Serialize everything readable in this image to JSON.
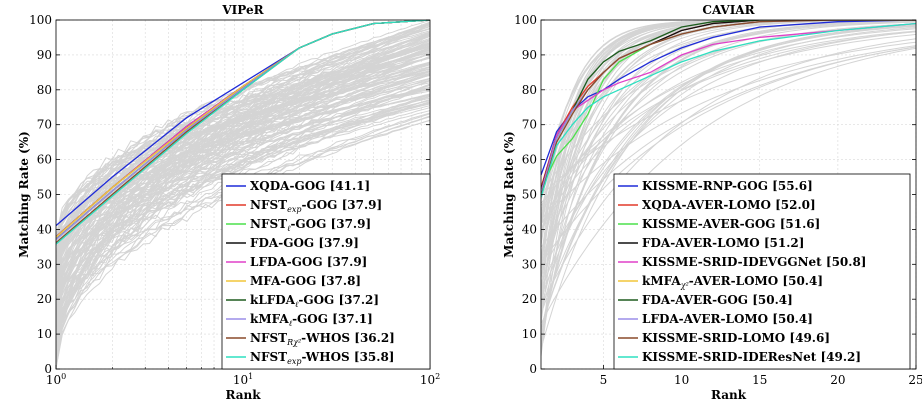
{
  "chart_data": [
    {
      "type": "line",
      "title": "VIPeR",
      "xlabel": "Rank",
      "ylabel": "Matching Rate (%)",
      "xscale": "log",
      "xlim": [
        1,
        100
      ],
      "ylim": [
        0,
        100
      ],
      "xticks": [
        1,
        10,
        100
      ],
      "xtick_labels": [
        "10",
        "10",
        "10"
      ],
      "xtick_sup": [
        "0",
        "1",
        "2"
      ],
      "yticks": [
        0,
        10,
        20,
        30,
        40,
        50,
        60,
        70,
        80,
        90,
        100
      ],
      "grid": true,
      "legend_position": "bottom-right",
      "background_curves": "gray",
      "series": [
        {
          "name": "XQDA-GOG [41.1]",
          "color": "#1f2bd8",
          "x": [
            1,
            2,
            5,
            10,
            20,
            30,
            50,
            100
          ],
          "values": [
            41.1,
            55,
            72,
            82,
            92,
            96,
            99,
            100
          ]
        },
        {
          "name": "NFST-GOG [37.9]",
          "name_parts": [
            "NFST",
            "exp",
            "-GOG [37.9]"
          ],
          "color": "#e23a2a",
          "x": [
            1,
            2,
            5,
            10,
            20,
            30,
            50,
            100
          ],
          "values": [
            37.9,
            52,
            69.5,
            81,
            92,
            96,
            99,
            100
          ]
        },
        {
          "name": "NFST-GOG [37.9]",
          "name_parts": [
            "NFST",
            "ℓ",
            "-GOG [37.9]"
          ],
          "color": "#4be04b",
          "x": [
            1,
            2,
            5,
            10,
            20,
            30,
            50,
            100
          ],
          "values": [
            37.9,
            52,
            69,
            81,
            92,
            96,
            99,
            100
          ]
        },
        {
          "name": "FDA-GOG [37.9]",
          "color": "#111111",
          "x": [
            1,
            2,
            5,
            10,
            20,
            30,
            50,
            100
          ],
          "values": [
            37.9,
            52,
            69.5,
            81,
            92,
            96,
            99,
            100
          ]
        },
        {
          "name": "LFDA-GOG [37.9]",
          "color": "#e040c8",
          "x": [
            1,
            2,
            5,
            10,
            20,
            30,
            50,
            100
          ],
          "values": [
            37.9,
            52,
            69.5,
            81,
            92,
            96,
            99,
            100
          ]
        },
        {
          "name": "MFA-GOG [37.8]",
          "color": "#f2c53a",
          "x": [
            1,
            2,
            5,
            10,
            20,
            30,
            50,
            100
          ],
          "values": [
            37.8,
            52,
            69,
            81,
            92,
            96,
            99,
            100
          ]
        },
        {
          "name": "kLFDA-GOG [37.2]",
          "name_parts": [
            "kLFDA",
            "ℓ",
            "-GOG [37.2]"
          ],
          "color": "#1e5c1e",
          "x": [
            1,
            2,
            5,
            10,
            20,
            30,
            50,
            100
          ],
          "values": [
            37.2,
            51,
            68.5,
            80.5,
            92,
            96,
            99,
            100
          ]
        },
        {
          "name": "kMFA-GOG [37.1]",
          "name_parts": [
            "kMFA",
            "ℓ",
            "-GOG [37.1]"
          ],
          "color": "#9b8ee8",
          "x": [
            1,
            2,
            5,
            10,
            20,
            30,
            50,
            100
          ],
          "values": [
            37.1,
            51,
            68.5,
            80.5,
            92,
            96,
            99,
            100
          ]
        },
        {
          "name": "NFST-WHOS [36.2]",
          "name_parts": [
            "NFST",
            "Rχ²",
            "-WHOS [36.2]"
          ],
          "color": "#8a4a2a",
          "x": [
            1,
            2,
            5,
            10,
            20,
            30,
            50,
            100
          ],
          "values": [
            36.2,
            50,
            68,
            80,
            92,
            96,
            99,
            100
          ]
        },
        {
          "name": "NFST-WHOS [35.8]",
          "name_parts": [
            "NFST",
            "exp",
            "-WHOS [35.8]"
          ],
          "color": "#2ee0c0",
          "x": [
            1,
            2,
            5,
            10,
            20,
            30,
            50,
            100
          ],
          "values": [
            35.8,
            49.5,
            67.5,
            80,
            92,
            96,
            99,
            100
          ]
        }
      ]
    },
    {
      "type": "line",
      "title": "CAVIAR",
      "xlabel": "Rank",
      "ylabel": "Matching Rate (%)",
      "xlim": [
        1,
        25
      ],
      "ylim": [
        0,
        100
      ],
      "xticks": [
        5,
        10,
        15,
        20,
        25
      ],
      "xtick_labels": [
        "5",
        "10",
        "15",
        "20",
        "25"
      ],
      "yticks": [
        0,
        10,
        20,
        30,
        40,
        50,
        60,
        70,
        80,
        90,
        100
      ],
      "grid": true,
      "legend_position": "bottom-right",
      "background_curves": "gray",
      "series": [
        {
          "name": "KISSME-RNP-GOG [55.6]",
          "color": "#1f2bd8",
          "x": [
            1,
            2,
            3,
            4,
            5,
            6,
            8,
            10,
            12,
            15,
            20,
            25
          ],
          "values": [
            55.6,
            68,
            74,
            78,
            80,
            83,
            88,
            92,
            95,
            98,
            99.5,
            100
          ]
        },
        {
          "name": "XQDA-AVER-LOMO [52.0]",
          "color": "#e23a2a",
          "x": [
            1,
            2,
            3,
            4,
            5,
            6,
            8,
            10,
            12,
            15,
            20,
            25
          ],
          "values": [
            52,
            67,
            75,
            81,
            85,
            89,
            93,
            97,
            99,
            100,
            100,
            100
          ]
        },
        {
          "name": "KISSME-AVER-GOG [51.6]",
          "color": "#4be04b",
          "x": [
            1,
            2,
            3,
            4,
            5,
            6,
            8,
            10,
            12,
            15,
            20,
            25
          ],
          "values": [
            51.6,
            61,
            66,
            73,
            83,
            88,
            93,
            96,
            98,
            99.5,
            100,
            100
          ]
        },
        {
          "name": "FDA-AVER-LOMO [51.2]",
          "color": "#111111",
          "x": [
            1,
            2,
            3,
            4,
            5,
            6,
            8,
            10,
            12,
            15,
            20,
            25
          ],
          "values": [
            51.2,
            67,
            74,
            80,
            85,
            89,
            93,
            97,
            99,
            100,
            100,
            100
          ]
        },
        {
          "name": "KISSME-SRID-IDEVGGNet [50.8]",
          "color": "#e040c8",
          "x": [
            1,
            2,
            3,
            4,
            5,
            6,
            8,
            10,
            12,
            15,
            20,
            25
          ],
          "values": [
            50.8,
            67,
            74,
            77,
            80,
            82,
            85,
            90,
            93,
            95,
            97,
            99
          ]
        },
        {
          "name": "kMFA-AVER-LOMO [50.4]",
          "name_parts": [
            "kMFA",
            "χ²",
            "-AVER-LOMO [50.4]"
          ],
          "color": "#f2c53a",
          "x": [
            1,
            2,
            3,
            4,
            5,
            6,
            8,
            10,
            12,
            15,
            20,
            25
          ],
          "values": [
            50.4,
            66,
            74,
            80,
            85,
            89,
            93,
            96,
            98,
            99.5,
            100,
            100
          ]
        },
        {
          "name": "FDA-AVER-GOG [50.4]",
          "color": "#1e5c1e",
          "x": [
            1,
            2,
            3,
            4,
            5,
            6,
            8,
            10,
            12,
            15,
            20,
            25
          ],
          "values": [
            50.4,
            66,
            74,
            83,
            88,
            91,
            94,
            98,
            99.5,
            100,
            100,
            100
          ]
        },
        {
          "name": "LFDA-AVER-LOMO [50.4]",
          "color": "#9b8ee8",
          "x": [
            1,
            2,
            3,
            4,
            5,
            6,
            8,
            10,
            12,
            15,
            20,
            25
          ],
          "values": [
            50.4,
            66,
            74,
            80,
            85,
            89,
            93,
            96,
            98,
            99.5,
            100,
            100
          ]
        },
        {
          "name": "KISSME-SRID-LOMO [49.6]",
          "color": "#8a4a2a",
          "x": [
            1,
            2,
            3,
            4,
            5,
            6,
            8,
            10,
            12,
            15,
            20,
            25
          ],
          "values": [
            49.6,
            65,
            73,
            80,
            85,
            89,
            93,
            96,
            98,
            99.5,
            100,
            100
          ]
        },
        {
          "name": "KISSME-SRID-IDEResNet [49.2]",
          "color": "#2ee0c0",
          "x": [
            1,
            2,
            3,
            4,
            5,
            6,
            8,
            10,
            12,
            15,
            20,
            25
          ],
          "values": [
            49.2,
            64,
            70,
            75,
            78,
            80,
            84,
            88,
            91,
            94,
            97,
            99
          ]
        }
      ]
    }
  ]
}
